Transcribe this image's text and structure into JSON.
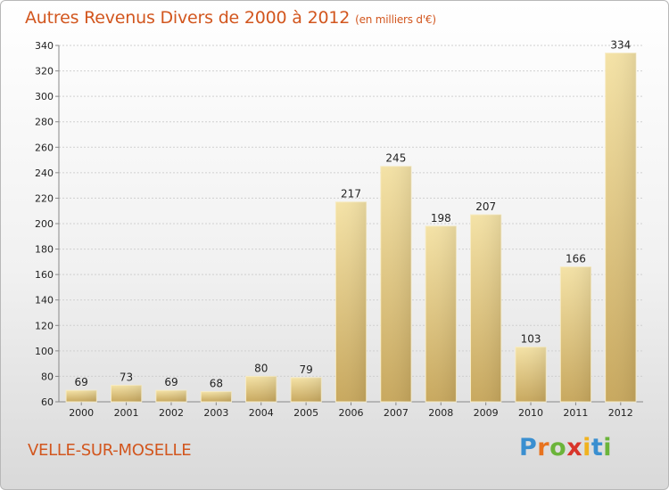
{
  "header": {
    "title": "Autres Revenus Divers de 2000 à 2012",
    "unit": "(en milliers d'€)"
  },
  "footer": {
    "city": "VELLE-SUR-MOSELLE",
    "logo": {
      "letters": [
        "P",
        "r",
        "o",
        "x",
        "i",
        "t",
        "i"
      ],
      "colors": [
        "#3a8fd0",
        "#e8731f",
        "#6bb43a",
        "#d8342a",
        "#f0b21f",
        "#3a8fd0",
        "#6bb43a"
      ]
    }
  },
  "colors": {
    "title": "#d2561e",
    "bar_light": "#f3deA0",
    "bar_dark": "#c9aa60"
  },
  "chart_data": {
    "type": "bar",
    "categories": [
      "2000",
      "2001",
      "2002",
      "2003",
      "2004",
      "2005",
      "2006",
      "2007",
      "2008",
      "2009",
      "2010",
      "2011",
      "2012"
    ],
    "values": [
      69,
      73,
      69,
      68,
      80,
      79,
      217,
      245,
      198,
      207,
      103,
      166,
      334
    ],
    "data_labels": [
      "69",
      "73",
      "69",
      "68",
      "80",
      "79",
      "217",
      "245",
      "198",
      "207",
      "103",
      "166",
      "334"
    ],
    "y_ticks": [
      "60",
      "80",
      "100",
      "120",
      "140",
      "160",
      "180",
      "200",
      "220",
      "240",
      "260",
      "280",
      "300",
      "320",
      "340"
    ],
    "ylim": [
      60,
      340
    ],
    "grid": true,
    "legend": "none"
  }
}
